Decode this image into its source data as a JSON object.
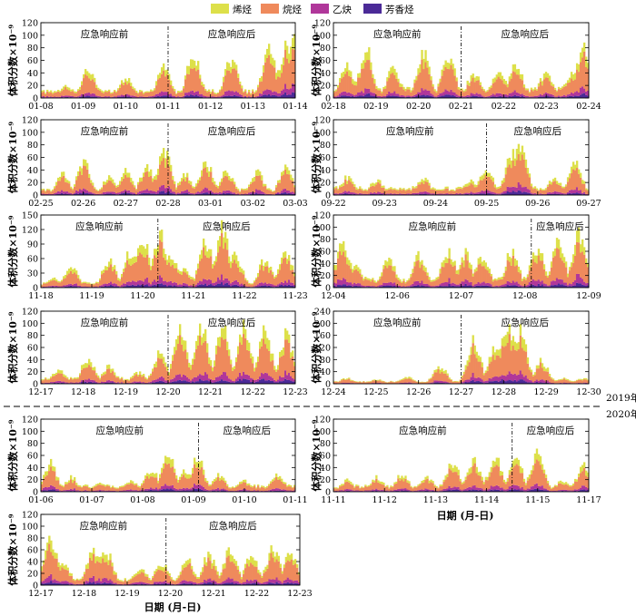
{
  "legend": [
    {
      "label": "烯烃",
      "color": "#dde04a"
    },
    {
      "label": "烷烃",
      "color": "#ef8a5c"
    },
    {
      "label": "乙炔",
      "color": "#b0379a"
    },
    {
      "label": "芳香烃",
      "color": "#4b2a97"
    }
  ],
  "colors": {
    "olefin": "#dde04a",
    "alkane": "#ef8a5c",
    "acetylene": "#b0379a",
    "aromatic": "#4b2a97"
  },
  "ylabel": "体积分数×10⁻⁹",
  "xlabel": "日期 (月-日)",
  "phase_before": "应急响应前",
  "phase_after": "应急响应后",
  "year_upper": "2019年",
  "year_lower": "2020年",
  "chart_data": [
    {
      "type": "area",
      "stacked": true,
      "ylim": [
        0,
        120
      ],
      "yticks": [
        0,
        20,
        40,
        60,
        80,
        100,
        120
      ],
      "dates": [
        "01-08",
        "01-09",
        "01-10",
        "01-11",
        "01-12",
        "01-13",
        "01-14"
      ],
      "divider": 3,
      "peaks": [
        [
          0.6,
          20
        ],
        [
          1.1,
          50
        ],
        [
          2.0,
          35
        ],
        [
          2.9,
          55
        ],
        [
          3.6,
          75
        ],
        [
          4.5,
          65
        ],
        [
          5.4,
          80
        ],
        [
          5.8,
          85
        ],
        [
          6.0,
          100
        ]
      ],
      "base": 12
    },
    {
      "type": "area",
      "stacked": true,
      "ylim": [
        0,
        120
      ],
      "yticks": [
        0,
        20,
        40,
        60,
        80,
        100,
        120
      ],
      "dates": [
        "02-18",
        "02-19",
        "02-20",
        "02-21",
        "02-22",
        "02-23",
        "02-24"
      ],
      "divider": 3,
      "peaks": [
        [
          0.3,
          55
        ],
        [
          0.75,
          82
        ],
        [
          1.4,
          50
        ],
        [
          2.1,
          75
        ],
        [
          2.7,
          70
        ],
        [
          3.3,
          40
        ],
        [
          3.9,
          45
        ],
        [
          4.3,
          55
        ],
        [
          5.0,
          40
        ],
        [
          5.6,
          40
        ],
        [
          5.9,
          85
        ]
      ],
      "base": 15
    },
    {
      "type": "area",
      "stacked": true,
      "ylim": [
        0,
        120
      ],
      "yticks": [
        0,
        20,
        40,
        60,
        80,
        100,
        120
      ],
      "dates": [
        "02-25",
        "02-26",
        "02-27",
        "02-28",
        "03-01",
        "03-02",
        "03-03"
      ],
      "divider": 3,
      "peaks": [
        [
          0.5,
          35
        ],
        [
          1.0,
          55
        ],
        [
          1.6,
          30
        ],
        [
          2.0,
          40
        ],
        [
          2.5,
          50
        ],
        [
          2.9,
          80
        ],
        [
          3.4,
          35
        ],
        [
          3.9,
          55
        ],
        [
          4.4,
          40
        ],
        [
          5.1,
          40
        ],
        [
          5.8,
          45
        ]
      ],
      "base": 10
    },
    {
      "type": "area",
      "stacked": true,
      "ylim": [
        0,
        120
      ],
      "yticks": [
        0,
        20,
        40,
        60,
        80,
        100,
        120
      ],
      "dates": [
        "09-22",
        "09-23",
        "09-24",
        "09-25",
        "09-26",
        "09-27"
      ],
      "divider": 3,
      "peaks": [
        [
          0.3,
          30
        ],
        [
          1.0,
          25
        ],
        [
          2.1,
          30
        ],
        [
          3.2,
          25
        ],
        [
          3.6,
          45
        ],
        [
          4.2,
          70
        ],
        [
          4.4,
          90
        ],
        [
          5.2,
          30
        ],
        [
          5.7,
          55
        ]
      ],
      "base": 12
    },
    {
      "type": "area",
      "stacked": true,
      "ylim": [
        0,
        150
      ],
      "yticks": [
        0,
        30,
        60,
        90,
        120,
        150
      ],
      "dates": [
        "11-18",
        "11-19",
        "11-20",
        "11-21",
        "11-22",
        "11-23"
      ],
      "divider": 2.3,
      "peaks": [
        [
          0.3,
          20
        ],
        [
          0.7,
          45
        ],
        [
          1.6,
          60
        ],
        [
          2.1,
          80
        ],
        [
          2.4,
          110
        ],
        [
          2.8,
          120
        ],
        [
          3.1,
          70
        ],
        [
          3.4,
          40
        ],
        [
          3.9,
          100
        ],
        [
          4.3,
          130
        ],
        [
          4.6,
          70
        ],
        [
          5.3,
          60
        ],
        [
          5.8,
          75
        ]
      ],
      "base": 10
    },
    {
      "type": "area",
      "stacked": true,
      "ylim": [
        0,
        120
      ],
      "yticks": [
        0,
        20,
        40,
        60,
        80,
        100,
        120
      ],
      "dates": [
        "12-04",
        "12-06",
        "12-07",
        "12-08",
        "12-09"
      ],
      "divider": 3.1,
      "peaks": [
        [
          0.2,
          80
        ],
        [
          0.5,
          35
        ],
        [
          1.3,
          50
        ],
        [
          2.0,
          55
        ],
        [
          2.7,
          65
        ],
        [
          3.1,
          60
        ],
        [
          3.5,
          55
        ],
        [
          4.2,
          65
        ],
        [
          4.8,
          70
        ],
        [
          5.3,
          80
        ],
        [
          5.8,
          95
        ]
      ],
      "base": 15
    },
    {
      "type": "area",
      "stacked": true,
      "ylim": [
        0,
        120
      ],
      "yticks": [
        0,
        20,
        40,
        60,
        80,
        100,
        120
      ],
      "dates": [
        "12-17",
        "12-18",
        "12-19",
        "12-20",
        "12-21",
        "12-22",
        "12-23"
      ],
      "divider": 3,
      "peaks": [
        [
          0.4,
          25
        ],
        [
          1.1,
          45
        ],
        [
          1.6,
          30
        ],
        [
          2.3,
          20
        ],
        [
          2.8,
          55
        ],
        [
          3.3,
          95
        ],
        [
          3.8,
          100
        ],
        [
          4.3,
          100
        ],
        [
          4.8,
          105
        ],
        [
          5.3,
          90
        ],
        [
          5.8,
          85
        ]
      ],
      "base": 10
    },
    {
      "type": "area",
      "stacked": true,
      "ylim": [
        0,
        240
      ],
      "yticks": [
        0,
        40,
        80,
        120,
        160,
        200,
        240
      ],
      "dates": [
        "12-24",
        "12-25",
        "12-26",
        "12-27",
        "12-28",
        "12-29",
        "12-30"
      ],
      "divider": 3,
      "peaks": [
        [
          0.3,
          20
        ],
        [
          1.0,
          15
        ],
        [
          1.7,
          25
        ],
        [
          2.5,
          60
        ],
        [
          3.3,
          150
        ],
        [
          3.8,
          120
        ],
        [
          4.1,
          210
        ],
        [
          4.4,
          180
        ],
        [
          4.9,
          80
        ],
        [
          5.4,
          20
        ],
        [
          5.9,
          20
        ]
      ],
      "base": 8
    },
    {
      "type": "area",
      "stacked": true,
      "ylim": [
        0,
        120
      ],
      "yticks": [
        0,
        20,
        40,
        60,
        80,
        100,
        120
      ],
      "dates": [
        "01-06",
        "01-07",
        "01-08",
        "01-09",
        "01-10",
        "01-11"
      ],
      "divider": 3.1,
      "peaks": [
        [
          0.2,
          50
        ],
        [
          0.7,
          25
        ],
        [
          1.4,
          15
        ],
        [
          2.1,
          20
        ],
        [
          2.6,
          40
        ],
        [
          3.0,
          65
        ],
        [
          3.4,
          40
        ],
        [
          3.7,
          60
        ],
        [
          4.2,
          30
        ],
        [
          4.8,
          20
        ],
        [
          5.6,
          30
        ]
      ],
      "base": 10
    },
    {
      "type": "area",
      "stacked": true,
      "ylim": [
        0,
        120
      ],
      "yticks": [
        0,
        20,
        40,
        60,
        80,
        100,
        120
      ],
      "dates": [
        "11-11",
        "11-12",
        "11-13",
        "11-14",
        "11-15",
        "11-17"
      ],
      "divider": 3.5,
      "peaks": [
        [
          0.3,
          20
        ],
        [
          1.0,
          25
        ],
        [
          1.6,
          30
        ],
        [
          2.2,
          25
        ],
        [
          2.8,
          50
        ],
        [
          3.3,
          55
        ],
        [
          3.8,
          60
        ],
        [
          4.3,
          55
        ],
        [
          4.8,
          70
        ],
        [
          5.4,
          20
        ],
        [
          5.9,
          45
        ]
      ],
      "base": 10
    },
    {
      "type": "area",
      "stacked": true,
      "ylim": [
        0,
        120
      ],
      "yticks": [
        0,
        20,
        40,
        60,
        80,
        100,
        120
      ],
      "dates": [
        "12-17",
        "12-18",
        "12-19",
        "12-20",
        "12-21",
        "12-22",
        "12-23"
      ],
      "divider": 2.9,
      "peaks": [
        [
          0.2,
          80
        ],
        [
          0.5,
          40
        ],
        [
          1.2,
          65
        ],
        [
          1.5,
          60
        ],
        [
          2.3,
          30
        ],
        [
          2.8,
          40
        ],
        [
          3.4,
          45
        ],
        [
          3.9,
          55
        ],
        [
          4.4,
          65
        ],
        [
          4.9,
          55
        ],
        [
          5.4,
          65
        ],
        [
          5.8,
          60
        ]
      ],
      "base": 10
    }
  ]
}
